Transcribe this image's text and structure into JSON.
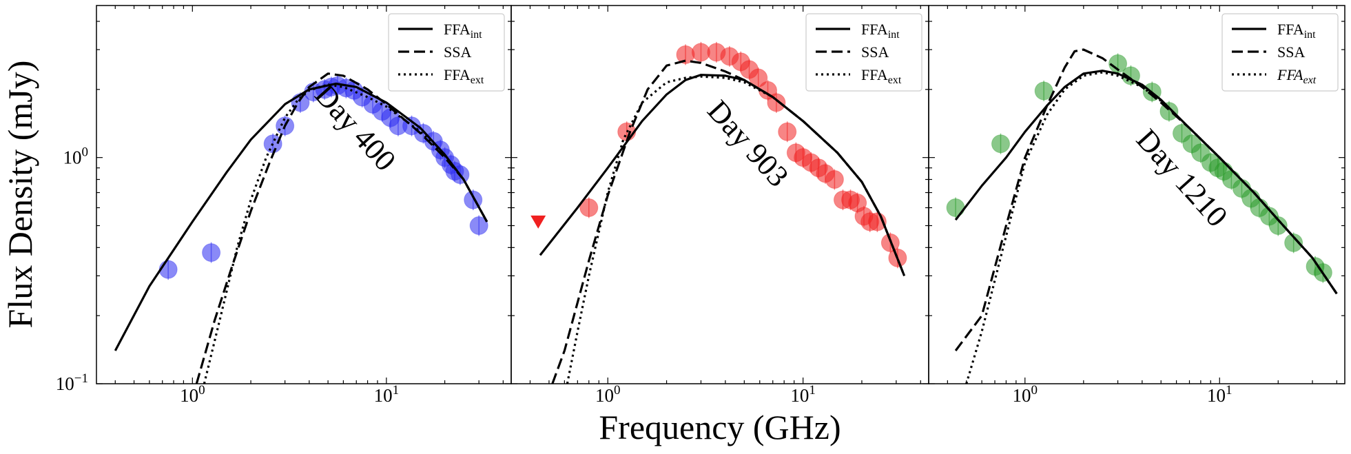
{
  "chart_data": {
    "type": "scatter",
    "title": "",
    "xlabel": "Frequency (GHz)",
    "ylabel": "Flux Density (mJy)",
    "xscale": "log",
    "yscale": "log",
    "xlim": [
      0.32,
      44
    ],
    "ylim": [
      0.1,
      4.7
    ],
    "yticks": [
      {
        "value": 1.0,
        "base": "10",
        "exp": "0"
      },
      {
        "value": 0.1,
        "base": "10",
        "exp": "−1"
      }
    ],
    "xticks": [
      {
        "value": 1.0,
        "base": "10",
        "exp": "0"
      },
      {
        "value": 10.0,
        "base": "10",
        "exp": "1"
      }
    ],
    "legend": {
      "position": "top-right",
      "entries": [
        {
          "style": "solid",
          "base": "FFA",
          "sub": "int"
        },
        {
          "style": "dashed",
          "base": "SSA",
          "sub": ""
        },
        {
          "style": "dotted",
          "base": "FFA",
          "sub": "ext"
        }
      ]
    },
    "panels": [
      {
        "label": "Day 400",
        "color": "#2a2af0",
        "points": [
          [
            0.75,
            0.32
          ],
          [
            1.25,
            0.38
          ],
          [
            2.6,
            1.15
          ],
          [
            3.0,
            1.38
          ],
          [
            3.6,
            1.75
          ],
          [
            4.2,
            1.95
          ],
          [
            4.8,
            2.0
          ],
          [
            5.2,
            2.05
          ],
          [
            5.6,
            2.08
          ],
          [
            6.2,
            2.03
          ],
          [
            6.8,
            1.98
          ],
          [
            7.5,
            1.85
          ],
          [
            8.5,
            1.72
          ],
          [
            9.5,
            1.6
          ],
          [
            10.5,
            1.5
          ],
          [
            11.5,
            1.38
          ],
          [
            13.5,
            1.38
          ],
          [
            15.5,
            1.28
          ],
          [
            17.5,
            1.18
          ],
          [
            19.0,
            1.08
          ],
          [
            20.0,
            1.0
          ],
          [
            21.5,
            0.93
          ],
          [
            22.5,
            0.87
          ],
          [
            24.0,
            0.84
          ],
          [
            28.0,
            0.65
          ],
          [
            30.0,
            0.5
          ]
        ],
        "upper_limits": [],
        "curves": {
          "ffa_int": [
            [
              0.4,
              0.14
            ],
            [
              0.6,
              0.27
            ],
            [
              1.0,
              0.52
            ],
            [
              1.5,
              0.86
            ],
            [
              2.0,
              1.2
            ],
            [
              3.0,
              1.72
            ],
            [
              4.0,
              2.0
            ],
            [
              5.5,
              2.12
            ],
            [
              7.0,
              2.05
            ],
            [
              10.0,
              1.75
            ],
            [
              15.0,
              1.35
            ],
            [
              20.0,
              1.03
            ],
            [
              25.0,
              0.8
            ],
            [
              33.0,
              0.52
            ]
          ],
          "ssa": [
            [
              1.05,
              0.1
            ],
            [
              1.3,
              0.19
            ],
            [
              1.6,
              0.33
            ],
            [
              2.0,
              0.58
            ],
            [
              2.5,
              0.95
            ],
            [
              3.0,
              1.38
            ],
            [
              3.5,
              1.75
            ],
            [
              4.0,
              2.05
            ],
            [
              5.0,
              2.35
            ],
            [
              6.0,
              2.3
            ],
            [
              8.0,
              2.0
            ],
            [
              10.0,
              1.72
            ],
            [
              15.0,
              1.28
            ],
            [
              20.0,
              1.0
            ],
            [
              25.0,
              0.8
            ],
            [
              33.0,
              0.52
            ]
          ],
          "ffa_ext": [
            [
              1.15,
              0.1
            ],
            [
              1.4,
              0.2
            ],
            [
              1.7,
              0.4
            ],
            [
              2.0,
              0.65
            ],
            [
              2.4,
              1.0
            ],
            [
              3.0,
              1.5
            ],
            [
              3.5,
              1.8
            ],
            [
              4.0,
              1.98
            ],
            [
              5.0,
              2.1
            ],
            [
              6.0,
              2.05
            ],
            [
              8.0,
              1.85
            ],
            [
              10.0,
              1.68
            ],
            [
              15.0,
              1.3
            ],
            [
              20.0,
              1.02
            ],
            [
              25.0,
              0.8
            ],
            [
              33.0,
              0.52
            ]
          ]
        }
      },
      {
        "label": "Day 903",
        "color": "#f02020",
        "points": [
          [
            0.8,
            0.6
          ],
          [
            1.25,
            1.3
          ],
          [
            2.5,
            2.85
          ],
          [
            3.0,
            2.92
          ],
          [
            3.6,
            2.92
          ],
          [
            4.2,
            2.8
          ],
          [
            4.8,
            2.65
          ],
          [
            5.3,
            2.45
          ],
          [
            5.9,
            2.25
          ],
          [
            6.6,
            1.98
          ],
          [
            7.3,
            1.75
          ],
          [
            8.3,
            1.3
          ],
          [
            9.2,
            1.05
          ],
          [
            10.0,
            1.0
          ],
          [
            11.0,
            0.95
          ],
          [
            12.0,
            0.9
          ],
          [
            13.0,
            0.85
          ],
          [
            14.5,
            0.8
          ],
          [
            16.0,
            0.65
          ],
          [
            17.5,
            0.65
          ],
          [
            19.0,
            0.63
          ],
          [
            20.5,
            0.55
          ],
          [
            22.0,
            0.52
          ],
          [
            24.0,
            0.52
          ],
          [
            28.0,
            0.42
          ],
          [
            30.5,
            0.36
          ]
        ],
        "upper_limits": [
          [
            0.44,
            0.52
          ]
        ],
        "curves": {
          "ffa_int": [
            [
              0.45,
              0.37
            ],
            [
              0.7,
              0.6
            ],
            [
              1.0,
              0.9
            ],
            [
              1.5,
              1.45
            ],
            [
              2.0,
              1.9
            ],
            [
              2.5,
              2.2
            ],
            [
              3.0,
              2.32
            ],
            [
              4.0,
              2.3
            ],
            [
              5.0,
              2.2
            ],
            [
              7.0,
              1.85
            ],
            [
              10.0,
              1.45
            ],
            [
              15.0,
              1.05
            ],
            [
              20.0,
              0.78
            ],
            [
              25.0,
              0.55
            ],
            [
              33.0,
              0.3
            ]
          ],
          "ssa": [
            [
              0.52,
              0.1
            ],
            [
              0.6,
              0.14
            ],
            [
              0.8,
              0.35
            ],
            [
              1.0,
              0.68
            ],
            [
              1.3,
              1.3
            ],
            [
              1.6,
              2.0
            ],
            [
              2.0,
              2.55
            ],
            [
              2.5,
              2.68
            ],
            [
              3.0,
              2.62
            ],
            [
              4.0,
              2.4
            ],
            [
              5.0,
              2.2
            ],
            [
              7.0,
              1.85
            ],
            [
              10.0,
              1.45
            ],
            [
              15.0,
              1.05
            ],
            [
              20.0,
              0.78
            ],
            [
              25.0,
              0.55
            ],
            [
              33.0,
              0.3
            ]
          ],
          "ffa_ext": [
            [
              0.62,
              0.1
            ],
            [
              0.7,
              0.17
            ],
            [
              0.8,
              0.3
            ],
            [
              1.0,
              0.7
            ],
            [
              1.2,
              1.2
            ],
            [
              1.5,
              1.75
            ],
            [
              2.0,
              2.15
            ],
            [
              2.5,
              2.25
            ],
            [
              3.0,
              2.28
            ],
            [
              4.0,
              2.25
            ],
            [
              5.0,
              2.15
            ],
            [
              7.0,
              1.85
            ],
            [
              10.0,
              1.45
            ],
            [
              15.0,
              1.05
            ],
            [
              20.0,
              0.78
            ],
            [
              25.0,
              0.55
            ],
            [
              33.0,
              0.3
            ]
          ]
        }
      },
      {
        "label": "Day 1210",
        "color": "#2a9a2a",
        "points": [
          [
            0.44,
            0.6
          ],
          [
            0.75,
            1.15
          ],
          [
            1.25,
            1.97
          ],
          [
            3.0,
            2.6
          ],
          [
            3.5,
            2.3
          ],
          [
            4.5,
            1.95
          ],
          [
            5.5,
            1.6
          ],
          [
            6.4,
            1.28
          ],
          [
            7.2,
            1.15
          ],
          [
            8.0,
            1.05
          ],
          [
            9.0,
            0.95
          ],
          [
            9.8,
            0.9
          ],
          [
            10.5,
            0.87
          ],
          [
            11.5,
            0.8
          ],
          [
            13.0,
            0.73
          ],
          [
            14.5,
            0.66
          ],
          [
            16.0,
            0.6
          ],
          [
            18.0,
            0.55
          ],
          [
            20.0,
            0.5
          ],
          [
            24.0,
            0.42
          ],
          [
            31.0,
            0.33
          ],
          [
            34.0,
            0.31
          ]
        ],
        "upper_limits": [],
        "curves": {
          "ffa_int": [
            [
              0.44,
              0.53
            ],
            [
              0.6,
              0.75
            ],
            [
              0.8,
              1.0
            ],
            [
              1.0,
              1.3
            ],
            [
              1.3,
              1.7
            ],
            [
              1.6,
              2.05
            ],
            [
              2.0,
              2.35
            ],
            [
              2.5,
              2.42
            ],
            [
              3.0,
              2.35
            ],
            [
              4.0,
              2.1
            ],
            [
              5.0,
              1.8
            ],
            [
              7.0,
              1.35
            ],
            [
              10.0,
              1.0
            ],
            [
              15.0,
              0.7
            ],
            [
              20.0,
              0.53
            ],
            [
              30.0,
              0.36
            ],
            [
              40.0,
              0.25
            ]
          ],
          "ssa": [
            [
              0.44,
              0.14
            ],
            [
              0.6,
              0.2
            ],
            [
              0.8,
              0.5
            ],
            [
              1.0,
              1.0
            ],
            [
              1.3,
              1.7
            ],
            [
              1.6,
              2.5
            ],
            [
              1.8,
              2.95
            ],
            [
              2.0,
              3.0
            ],
            [
              2.5,
              2.75
            ],
            [
              3.0,
              2.45
            ],
            [
              4.0,
              2.05
            ],
            [
              5.0,
              1.75
            ],
            [
              7.0,
              1.35
            ],
            [
              10.0,
              1.0
            ],
            [
              15.0,
              0.7
            ],
            [
              20.0,
              0.53
            ],
            [
              30.0,
              0.36
            ],
            [
              40.0,
              0.25
            ]
          ],
          "ffa_ext": [
            [
              0.5,
              0.1
            ],
            [
              0.6,
              0.17
            ],
            [
              0.8,
              0.45
            ],
            [
              1.0,
              0.95
            ],
            [
              1.3,
              1.55
            ],
            [
              1.6,
              2.0
            ],
            [
              2.0,
              2.3
            ],
            [
              2.5,
              2.38
            ],
            [
              3.0,
              2.3
            ],
            [
              4.0,
              2.05
            ],
            [
              5.0,
              1.78
            ],
            [
              7.0,
              1.35
            ],
            [
              10.0,
              1.0
            ],
            [
              15.0,
              0.7
            ],
            [
              20.0,
              0.53
            ],
            [
              30.0,
              0.36
            ],
            [
              40.0,
              0.25
            ]
          ]
        }
      }
    ]
  }
}
